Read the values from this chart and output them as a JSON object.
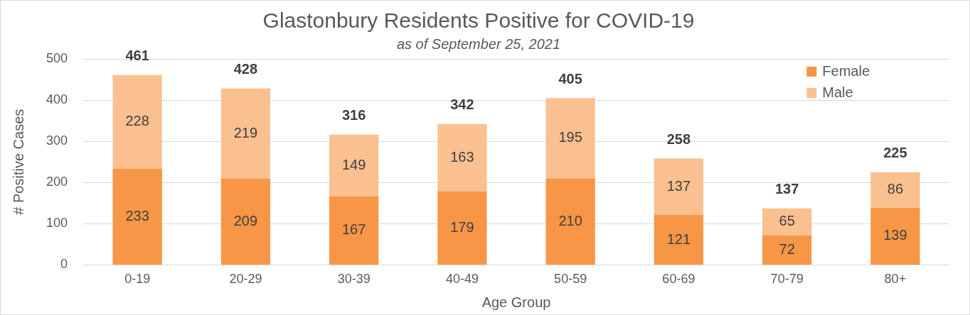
{
  "chart_data": {
    "type": "bar",
    "title": "Glastonbury Residents Positive for COVID-19",
    "subtitle": "as of September 25, 2021",
    "xlabel": "Age Group",
    "ylabel": "# Positive Cases",
    "categories": [
      "0-19",
      "20-29",
      "30-39",
      "40-49",
      "50-59",
      "60-69",
      "70-79",
      "80+"
    ],
    "series": [
      {
        "name": "Female",
        "color": "#f79646",
        "values": [
          233,
          209,
          167,
          179,
          210,
          121,
          72,
          139
        ]
      },
      {
        "name": "Male",
        "color": "#fac090",
        "values": [
          228,
          219,
          149,
          163,
          195,
          137,
          65,
          86
        ]
      }
    ],
    "stacked": true,
    "ylim": [
      0,
      500
    ],
    "yticks": [
      0,
      100,
      200,
      300,
      400,
      500
    ],
    "grid": "y",
    "legend": "top right",
    "data_labels": true,
    "totals": [
      "461",
      "428",
      "316",
      "342",
      "405",
      "258",
      "137",
      "225"
    ]
  }
}
